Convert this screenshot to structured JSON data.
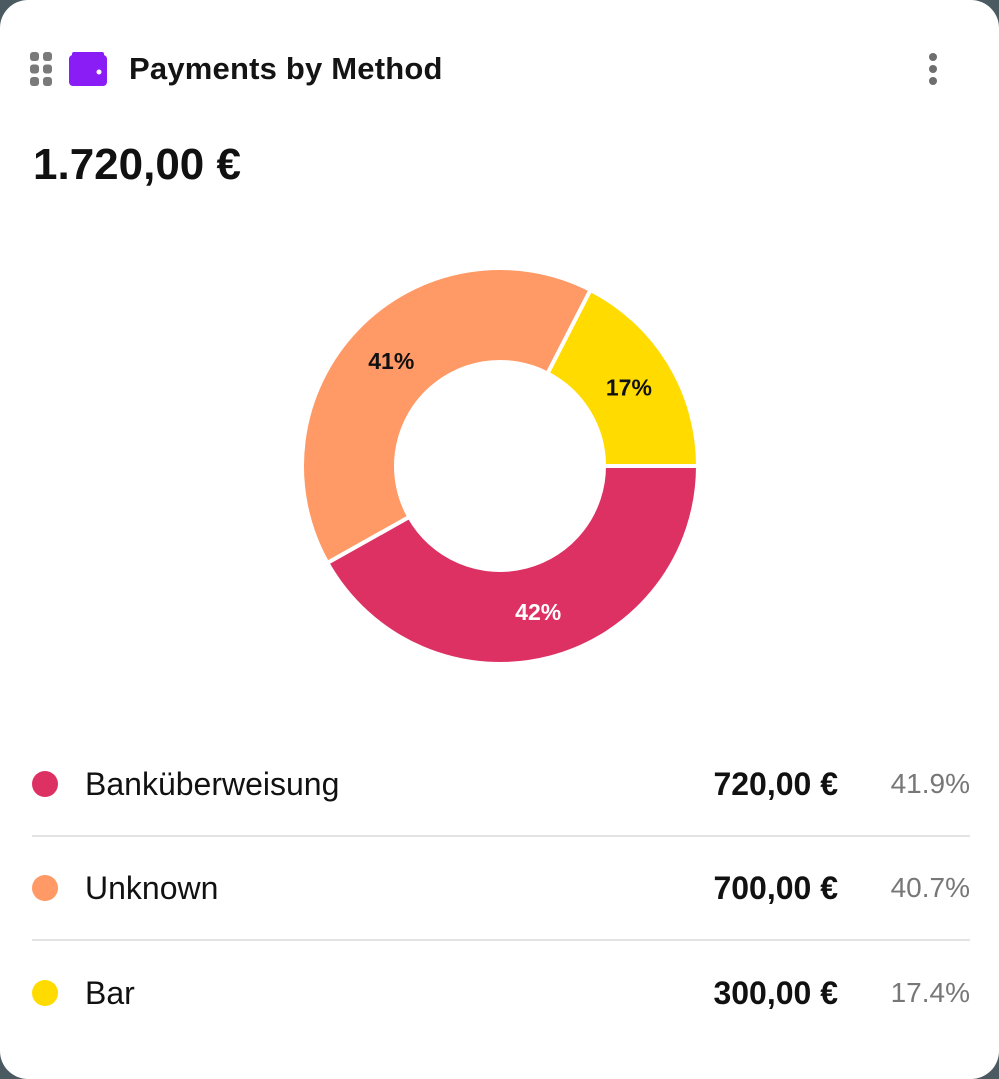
{
  "header": {
    "title": "Payments by Method",
    "drag_icon": "drag-handle-icon",
    "title_icon": "wallet-icon",
    "menu_icon": "more-vertical-icon",
    "wallet_color": "#8a1cf5"
  },
  "total": "1.720,00 €",
  "legend": [
    {
      "label": "Banküberweisung",
      "amount": "720,00 €",
      "percent": "41.9%",
      "color": "#de3163"
    },
    {
      "label": "Unknown",
      "amount": "700,00 €",
      "percent": "40.7%",
      "color": "#ff9966"
    },
    {
      "label": "Bar",
      "amount": "300,00 €",
      "percent": "17.4%",
      "color": "#ffdb00"
    }
  ],
  "chart_data": {
    "type": "pie",
    "variant": "donut",
    "title": "Payments by Method",
    "total": 1720,
    "categories": [
      "Banküberweisung",
      "Unknown",
      "Bar"
    ],
    "values": [
      720,
      700,
      300
    ],
    "percentages": [
      41.9,
      40.7,
      17.4
    ],
    "slice_labels": [
      "42%",
      "41%",
      "17%"
    ],
    "colors": [
      "#de3163",
      "#ff9966",
      "#ffdb00"
    ],
    "legend_position": "bottom"
  }
}
